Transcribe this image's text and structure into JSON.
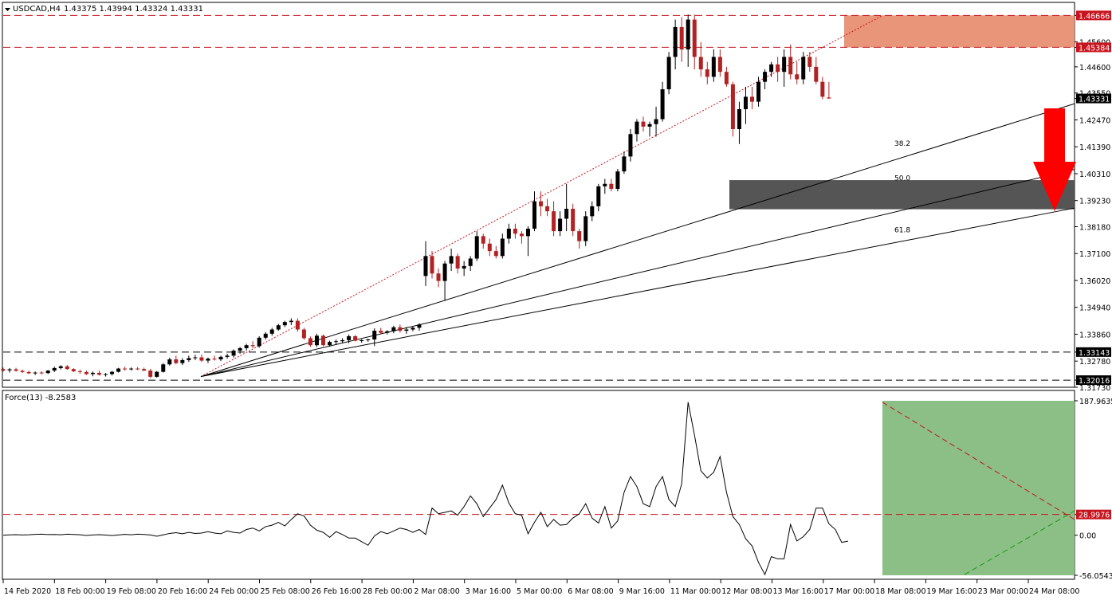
{
  "header": {
    "symbol": "USDCAD,H4",
    "ohlc": "1.43375 1.43994 1.43324 1.43331",
    "indicator": "Force(13) -8.2583"
  },
  "colors": {
    "bull": "#000000",
    "bear": "#b22222",
    "resistance_zone": "#e8957a",
    "support_zone": "#555555",
    "indicator_zone": "#8bbf85",
    "level_line": "#c8141e",
    "arrow": "#ff0000",
    "trend_green": "#1a9a1a"
  },
  "chart_data": [
    {
      "type": "candlestick",
      "ylim": [
        1.3173,
        1.4719
      ],
      "y_ticks": [
        "1.46666",
        "1.45600",
        "1.45384",
        "1.44600",
        "1.43550",
        "1.43331",
        "1.42470",
        "1.41390",
        "1.40310",
        "1.39230",
        "1.38180",
        "1.37100",
        "1.36020",
        "1.34940",
        "1.33860",
        "1.33143",
        "1.32780",
        "1.32016",
        "1.31730"
      ],
      "x_ticks": [
        "14 Feb 2020",
        "18 Feb 00:00",
        "19 Feb 08:00",
        "20 Feb 16:00",
        "24 Feb 00:00",
        "25 Feb 08:00",
        "26 Feb 16:00",
        "28 Feb 00:00",
        "2 Mar 08:00",
        "3 Mar 16:00",
        "5 Mar 00:00",
        "6 Mar 08:00",
        "9 Mar 16:00",
        "11 Mar 00:00",
        "12 Mar 08:00",
        "13 Mar 16:00",
        "17 Mar 00:00",
        "18 Mar 08:00",
        "19 Mar 16:00",
        "23 Mar 00:00",
        "24 Mar 08:00"
      ],
      "horizontal_levels": [
        {
          "value": 1.46666,
          "label": "1.46666",
          "style": "red-dashed"
        },
        {
          "value": 1.45384,
          "label": "1.45384",
          "style": "red-dashed"
        },
        {
          "value": 1.33143,
          "label": "1.33143",
          "style": "black-dashed"
        },
        {
          "value": 1.32016,
          "label": "1.32016",
          "style": "black-dashed"
        }
      ],
      "current_price": "1.43331",
      "resistance_zone": [
        1.45384,
        1.46666
      ],
      "support_zone": [
        1.3888,
        1.4005
      ],
      "fib_levels": [
        "38.2",
        "50.0",
        "61.8"
      ],
      "candles": [
        [
          1.3246,
          1.3252,
          1.3236,
          1.324
        ],
        [
          1.3241,
          1.325,
          1.3232,
          1.3245
        ],
        [
          1.3245,
          1.3251,
          1.3236,
          1.3239
        ],
        [
          1.3239,
          1.3244,
          1.323,
          1.3234
        ],
        [
          1.3234,
          1.324,
          1.3226,
          1.3229
        ],
        [
          1.3229,
          1.3236,
          1.3222,
          1.3232
        ],
        [
          1.3232,
          1.3238,
          1.3225,
          1.323
        ],
        [
          1.323,
          1.3242,
          1.3226,
          1.324
        ],
        [
          1.324,
          1.3256,
          1.3234,
          1.325
        ],
        [
          1.325,
          1.3262,
          1.3244,
          1.3257
        ],
        [
          1.3257,
          1.3262,
          1.3243,
          1.3246
        ],
        [
          1.3246,
          1.325,
          1.3234,
          1.3237
        ],
        [
          1.3237,
          1.3244,
          1.3227,
          1.3234
        ],
        [
          1.3234,
          1.324,
          1.3222,
          1.3226
        ],
        [
          1.3226,
          1.3236,
          1.3217,
          1.3231
        ],
        [
          1.3231,
          1.324,
          1.322,
          1.3223
        ],
        [
          1.3223,
          1.323,
          1.3216,
          1.3226
        ],
        [
          1.3226,
          1.3238,
          1.322,
          1.3235
        ],
        [
          1.3235,
          1.3251,
          1.3232,
          1.3248
        ],
        [
          1.3248,
          1.3256,
          1.324,
          1.3247
        ],
        [
          1.3247,
          1.3253,
          1.324,
          1.3248
        ],
        [
          1.3248,
          1.3254,
          1.3242,
          1.3246
        ],
        [
          1.3246,
          1.3252,
          1.3238,
          1.324
        ],
        [
          1.324,
          1.3247,
          1.321,
          1.3215
        ],
        [
          1.3215,
          1.3238,
          1.3212,
          1.3235
        ],
        [
          1.3235,
          1.327,
          1.3232,
          1.3265
        ],
        [
          1.3265,
          1.3292,
          1.326,
          1.3285
        ],
        [
          1.3285,
          1.33,
          1.3265,
          1.327
        ],
        [
          1.327,
          1.329,
          1.3262,
          1.3282
        ],
        [
          1.3282,
          1.33,
          1.3275,
          1.329
        ],
        [
          1.329,
          1.3304,
          1.3282,
          1.3293
        ],
        [
          1.3293,
          1.3305,
          1.3275,
          1.328
        ],
        [
          1.328,
          1.3292,
          1.327,
          1.3288
        ],
        [
          1.3288,
          1.33,
          1.328,
          1.3285
        ],
        [
          1.3285,
          1.33,
          1.3278,
          1.3295
        ],
        [
          1.3295,
          1.3308,
          1.3288,
          1.33
        ],
        [
          1.33,
          1.3325,
          1.3292,
          1.332
        ],
        [
          1.332,
          1.3335,
          1.3308,
          1.333
        ],
        [
          1.333,
          1.3348,
          1.332,
          1.3342
        ],
        [
          1.3342,
          1.3358,
          1.333,
          1.3338
        ],
        [
          1.3338,
          1.3378,
          1.3332,
          1.3372
        ],
        [
          1.3372,
          1.3395,
          1.3364,
          1.3388
        ],
        [
          1.3388,
          1.3412,
          1.338,
          1.3405
        ],
        [
          1.3405,
          1.3428,
          1.34,
          1.3422
        ],
        [
          1.3422,
          1.344,
          1.3415,
          1.3435
        ],
        [
          1.3435,
          1.345,
          1.3423,
          1.344
        ],
        [
          1.344,
          1.345,
          1.3396,
          1.3405
        ],
        [
          1.3405,
          1.3412,
          1.3364,
          1.337
        ],
        [
          1.337,
          1.3377,
          1.3335,
          1.3342
        ],
        [
          1.3342,
          1.3388,
          1.3335,
          1.338
        ],
        [
          1.338,
          1.3385,
          1.3338,
          1.3342
        ],
        [
          1.3342,
          1.336,
          1.3336,
          1.3355
        ],
        [
          1.3355,
          1.3365,
          1.3343,
          1.3358
        ],
        [
          1.3358,
          1.337,
          1.335,
          1.3362
        ],
        [
          1.3362,
          1.3385,
          1.335,
          1.3378
        ],
        [
          1.3378,
          1.3383,
          1.3357,
          1.336
        ],
        [
          1.336,
          1.3366,
          1.3352,
          1.3362
        ],
        [
          1.3362,
          1.3368,
          1.3356,
          1.3365
        ],
        [
          1.3365,
          1.341,
          1.3338,
          1.34
        ],
        [
          1.34,
          1.3412,
          1.3388,
          1.3392
        ],
        [
          1.3392,
          1.3402,
          1.3385,
          1.3398
        ],
        [
          1.3398,
          1.342,
          1.339,
          1.3414
        ],
        [
          1.3414,
          1.3425,
          1.3392,
          1.34
        ],
        [
          1.34,
          1.3415,
          1.3388,
          1.3405
        ],
        [
          1.3405,
          1.3418,
          1.3398,
          1.3412
        ],
        [
          1.3412,
          1.343,
          1.34,
          1.3425
        ],
        [
          1.362,
          1.376,
          1.358,
          1.37
        ],
        [
          1.37,
          1.372,
          1.361,
          1.363
        ],
        [
          1.363,
          1.365,
          1.3575,
          1.36
        ],
        [
          1.36,
          1.368,
          1.352,
          1.367
        ],
        [
          1.367,
          1.373,
          1.364,
          1.37
        ],
        [
          1.37,
          1.371,
          1.363,
          1.365
        ],
        [
          1.365,
          1.368,
          1.362,
          1.366
        ],
        [
          1.366,
          1.37,
          1.364,
          1.369
        ],
        [
          1.369,
          1.38,
          1.368,
          1.378
        ],
        [
          1.378,
          1.379,
          1.373,
          1.375
        ],
        [
          1.375,
          1.377,
          1.37,
          1.372
        ],
        [
          1.372,
          1.374,
          1.369,
          1.37
        ],
        [
          1.37,
          1.379,
          1.369,
          1.377
        ],
        [
          1.377,
          1.383,
          1.375,
          1.381
        ],
        [
          1.381,
          1.383,
          1.377,
          1.379
        ],
        [
          1.379,
          1.38,
          1.375,
          1.378
        ],
        [
          1.378,
          1.382,
          1.37,
          1.381
        ],
        [
          1.381,
          1.396,
          1.38,
          1.392
        ],
        [
          1.392,
          1.396,
          1.386,
          1.39
        ],
        [
          1.39,
          1.393,
          1.386,
          1.388
        ],
        [
          1.388,
          1.392,
          1.378,
          1.38
        ],
        [
          1.38,
          1.388,
          1.378,
          1.385
        ],
        [
          1.385,
          1.399,
          1.38,
          1.389
        ],
        [
          1.389,
          1.391,
          1.378,
          1.38
        ],
        [
          1.38,
          1.381,
          1.373,
          1.376
        ],
        [
          1.376,
          1.388,
          1.374,
          1.386
        ],
        [
          1.386,
          1.392,
          1.384,
          1.39
        ],
        [
          1.39,
          1.399,
          1.388,
          1.398
        ],
        [
          1.398,
          1.401,
          1.395,
          1.399
        ],
        [
          1.399,
          1.401,
          1.396,
          1.397
        ],
        [
          1.397,
          1.405,
          1.396,
          1.404
        ],
        [
          1.404,
          1.412,
          1.403,
          1.41
        ],
        [
          1.41,
          1.421,
          1.408,
          1.419
        ],
        [
          1.419,
          1.425,
          1.416,
          1.424
        ],
        [
          1.424,
          1.426,
          1.42,
          1.422
        ],
        [
          1.422,
          1.424,
          1.418,
          1.423
        ],
        [
          1.423,
          1.43,
          1.418,
          1.425
        ],
        [
          1.425,
          1.44,
          1.424,
          1.437
        ],
        [
          1.437,
          1.452,
          1.435,
          1.45
        ],
        [
          1.45,
          1.465,
          1.445,
          1.462
        ],
        [
          1.462,
          1.466,
          1.448,
          1.453
        ],
        [
          1.453,
          1.467,
          1.446,
          1.465
        ],
        [
          1.465,
          1.467,
          1.445,
          1.45
        ],
        [
          1.45,
          1.456,
          1.442,
          1.445
        ],
        [
          1.445,
          1.448,
          1.439,
          1.442
        ],
        [
          1.442,
          1.453,
          1.44,
          1.45
        ],
        [
          1.45,
          1.453,
          1.442,
          1.444
        ],
        [
          1.444,
          1.446,
          1.438,
          1.439
        ],
        [
          1.439,
          1.44,
          1.418,
          1.421
        ],
        [
          1.421,
          1.432,
          1.415,
          1.429
        ],
        [
          1.429,
          1.438,
          1.423,
          1.434
        ],
        [
          1.434,
          1.438,
          1.429,
          1.432
        ],
        [
          1.432,
          1.442,
          1.43,
          1.44
        ],
        [
          1.44,
          1.445,
          1.437,
          1.444
        ],
        [
          1.444,
          1.448,
          1.442,
          1.447
        ],
        [
          1.447,
          1.45,
          1.44,
          1.444
        ],
        [
          1.444,
          1.453,
          1.438,
          1.45
        ],
        [
          1.45,
          1.455,
          1.441,
          1.443
        ],
        [
          1.443,
          1.448,
          1.439,
          1.441
        ],
        [
          1.441,
          1.452,
          1.439,
          1.45
        ],
        [
          1.45,
          1.452,
          1.444,
          1.446
        ],
        [
          1.446,
          1.45,
          1.439,
          1.44
        ],
        [
          1.44,
          1.442,
          1.433,
          1.434
        ],
        [
          1.4337,
          1.4399,
          1.4332,
          1.4333
        ]
      ]
    },
    {
      "type": "line",
      "name": "Force(13)",
      "ylim": [
        -56.0543,
        187.9635
      ],
      "y_ticks": [
        "187.9635",
        "28.9976",
        "0.00",
        "-56.0543"
      ],
      "level": {
        "value": 28.9976,
        "label": "28.9976"
      },
      "values": [
        0,
        0.5,
        0.8,
        0.3,
        0.6,
        1.2,
        1.5,
        0.9,
        1.1,
        0.7,
        1.4,
        1.0,
        0.6,
        -0.3,
        0.4,
        0.8,
        0.2,
        -0.5,
        0.3,
        1.2,
        0.7,
        1.5,
        1.0,
        0.4,
        -1.5,
        0.5,
        2.5,
        3.5,
        2.0,
        4.0,
        2.5,
        3.0,
        5.0,
        3.0,
        2.0,
        6.0,
        4.0,
        3.0,
        8.0,
        10.0,
        6.0,
        12.0,
        14.0,
        18.0,
        13.0,
        22.0,
        30.0,
        27.0,
        14.0,
        7.0,
        4.0,
        -3.0,
        5.0,
        1.0,
        -4.0,
        -4.0,
        -9.0,
        -14.0,
        -1.0,
        5.0,
        2.0,
        6.0,
        10.0,
        8.0,
        4.0,
        8.0,
        1.0,
        38.0,
        30.0,
        32.0,
        34.0,
        28.0,
        40.0,
        55.0,
        44.0,
        26.0,
        38.0,
        50.0,
        70.0,
        45.0,
        30.0,
        28.0,
        2.0,
        18.0,
        32.0,
        12.0,
        22.0,
        14.0,
        15.0,
        24.0,
        30.0,
        44.0,
        24.0,
        17.0,
        40.0,
        10.0,
        20.0,
        60.0,
        82.0,
        68.0,
        44.0,
        40.0,
        68.0,
        82.0,
        50.0,
        40.0,
        72.0,
        186.0,
        140.0,
        90.0,
        80.0,
        88.0,
        110.0,
        60.0,
        26.0,
        15.0,
        -5.0,
        -15.0,
        -38.0,
        -55.0,
        -30.0,
        -33.0,
        -33.0,
        15.0,
        -8.0,
        -2.0,
        8.0,
        38.0,
        38.0,
        16.0,
        8.0,
        -10.0,
        -8.3
      ]
    }
  ]
}
